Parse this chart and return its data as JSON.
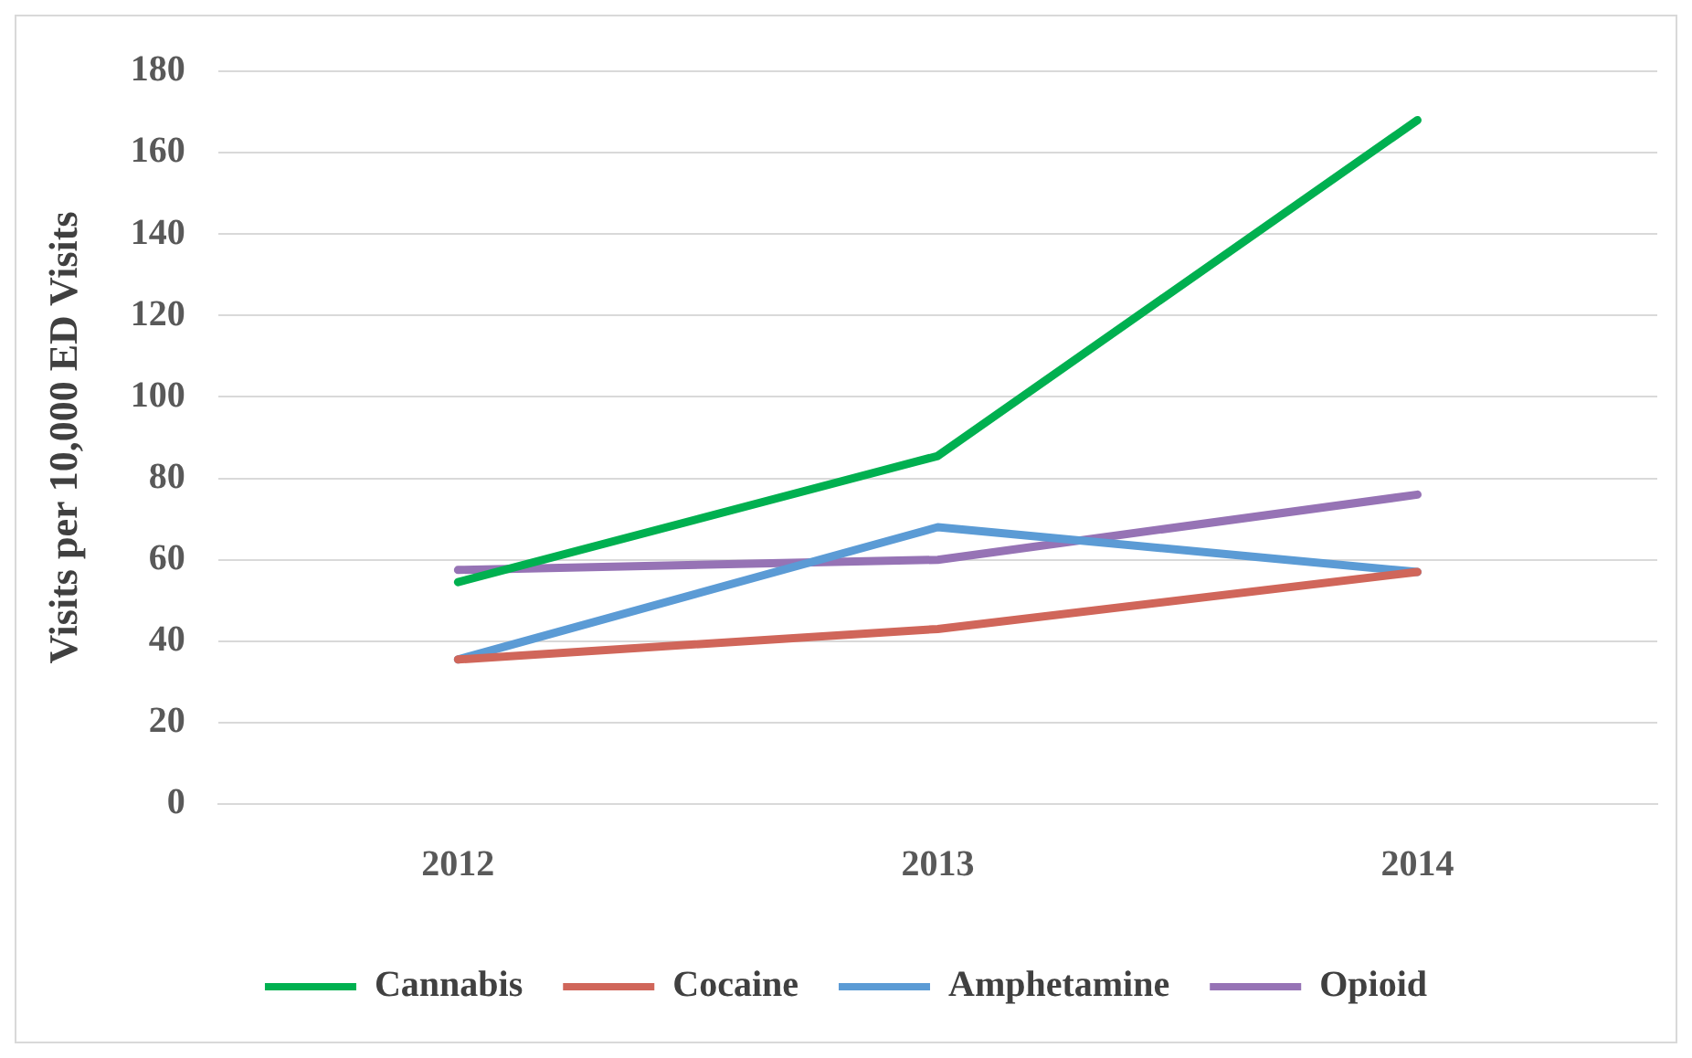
{
  "chart_data": {
    "type": "line",
    "ylabel": "Visits per 10,000 ED Visits",
    "categories": [
      "2012",
      "2013",
      "2014"
    ],
    "series": [
      {
        "name": "Cannabis",
        "color": "#00b050",
        "values": [
          54.5,
          85.5,
          168
        ]
      },
      {
        "name": "Cocaine",
        "color": "#d0665a",
        "values": [
          35.5,
          43,
          57
        ]
      },
      {
        "name": "Amphetamine",
        "color": "#5b9bd5",
        "values": [
          35.5,
          68,
          57
        ]
      },
      {
        "name": "Opioid",
        "color": "#9673b5",
        "values": [
          57.5,
          60,
          76
        ]
      }
    ],
    "ylim": [
      0,
      180
    ],
    "yticks": [
      0,
      20,
      40,
      60,
      80,
      100,
      120,
      140,
      160,
      180
    ],
    "grid": "y",
    "legend": "bottom",
    "marker": "none",
    "line_style": "solid"
  }
}
